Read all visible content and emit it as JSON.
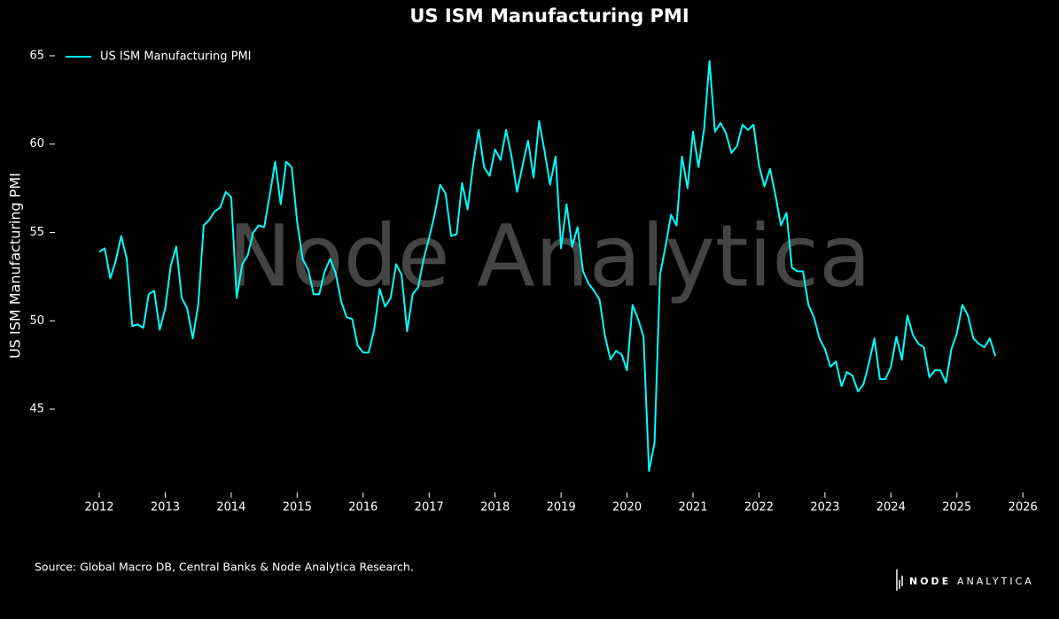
{
  "chart_data": {
    "type": "line",
    "title": "US ISM Manufacturing PMI",
    "ylabel": "US ISM Manufacturing PMI",
    "watermark": "Node Analytica",
    "source": "Source: Global Macro DB, Central Banks & Node Analytica Research.",
    "logo": [
      "NODE",
      "ANALYTICA"
    ],
    "legend": "upper left",
    "grid": false,
    "xlim": [
      2011.3,
      2026.4
    ],
    "ylim": [
      40.3,
      65.7
    ],
    "xticks": [
      2012,
      2013,
      2014,
      2015,
      2016,
      2017,
      2018,
      2019,
      2020,
      2021,
      2022,
      2023,
      2024,
      2025,
      2026
    ],
    "yticks": [
      45,
      50,
      55,
      60,
      65
    ],
    "x": [
      2012,
      2012.083,
      2012.167,
      2012.25,
      2012.333,
      2012.417,
      2012.5,
      2012.583,
      2012.667,
      2012.75,
      2012.833,
      2012.917,
      2013,
      2013.083,
      2013.167,
      2013.25,
      2013.333,
      2013.417,
      2013.5,
      2013.583,
      2013.667,
      2013.75,
      2013.833,
      2013.917,
      2014,
      2014.083,
      2014.167,
      2014.25,
      2014.333,
      2014.417,
      2014.5,
      2014.583,
      2014.667,
      2014.75,
      2014.833,
      2014.917,
      2015,
      2015.083,
      2015.167,
      2015.25,
      2015.333,
      2015.417,
      2015.5,
      2015.583,
      2015.667,
      2015.75,
      2015.833,
      2015.917,
      2016,
      2016.083,
      2016.167,
      2016.25,
      2016.333,
      2016.417,
      2016.5,
      2016.583,
      2016.667,
      2016.75,
      2016.833,
      2016.917,
      2017,
      2017.083,
      2017.167,
      2017.25,
      2017.333,
      2017.417,
      2017.5,
      2017.583,
      2017.667,
      2017.75,
      2017.833,
      2017.917,
      2018,
      2018.083,
      2018.167,
      2018.25,
      2018.333,
      2018.417,
      2018.5,
      2018.583,
      2018.667,
      2018.75,
      2018.833,
      2018.917,
      2019,
      2019.083,
      2019.167,
      2019.25,
      2019.333,
      2019.417,
      2019.5,
      2019.583,
      2019.667,
      2019.75,
      2019.833,
      2019.917,
      2020,
      2020.083,
      2020.167,
      2020.25,
      2020.333,
      2020.417,
      2020.5,
      2020.583,
      2020.667,
      2020.75,
      2020.833,
      2020.917,
      2021,
      2021.083,
      2021.167,
      2021.25,
      2021.333,
      2021.417,
      2021.5,
      2021.583,
      2021.667,
      2021.75,
      2021.833,
      2021.917,
      2022,
      2022.083,
      2022.167,
      2022.25,
      2022.333,
      2022.417,
      2022.5,
      2022.583,
      2022.667,
      2022.75,
      2022.833,
      2022.917,
      2023,
      2023.083,
      2023.167,
      2023.25,
      2023.333,
      2023.417,
      2023.5,
      2023.583,
      2023.667,
      2023.75,
      2023.833,
      2023.917,
      2024,
      2024.083,
      2024.167,
      2024.25,
      2024.333,
      2024.417,
      2024.5,
      2024.583,
      2024.667,
      2024.75,
      2024.833,
      2024.917,
      2025,
      2025.083,
      2025.167,
      2025.25,
      2025.333,
      2025.417,
      2025.5,
      2025.583
    ],
    "series": [
      {
        "name": "US ISM Manufacturing PMI",
        "color": "#00ffff",
        "values": [
          53.9,
          54.1,
          52.4,
          53.4,
          54.8,
          53.5,
          49.7,
          49.8,
          49.6,
          51.5,
          51.7,
          49.5,
          50.7,
          53.1,
          54.2,
          51.3,
          50.7,
          49.0,
          50.9,
          55.4,
          55.7,
          56.2,
          56.4,
          57.3,
          57.0,
          51.3,
          53.2,
          53.7,
          55.0,
          55.4,
          55.3,
          57.1,
          59.0,
          56.6,
          59.0,
          58.7,
          55.6,
          53.5,
          52.9,
          51.5,
          51.5,
          52.8,
          53.5,
          52.7,
          51.1,
          50.2,
          50.1,
          48.6,
          48.2,
          48.2,
          49.5,
          51.8,
          50.8,
          51.3,
          53.2,
          52.6,
          49.4,
          51.5,
          51.9,
          53.5,
          54.7,
          56.0,
          57.7,
          57.2,
          54.8,
          54.9,
          57.8,
          56.3,
          58.8,
          60.8,
          58.7,
          58.2,
          59.7,
          59.1,
          60.8,
          59.3,
          57.3,
          58.8,
          60.2,
          58.1,
          61.3,
          59.6,
          57.7,
          59.3,
          54.1,
          56.6,
          54.2,
          55.3,
          52.8,
          52.1,
          51.7,
          51.2,
          49.1,
          47.8,
          48.3,
          48.1,
          47.2,
          50.9,
          50.1,
          49.1,
          41.5,
          43.1,
          52.6,
          54.2,
          56.0,
          55.4,
          59.3,
          57.5,
          60.7,
          58.7,
          60.8,
          64.7,
          60.7,
          61.2,
          60.6,
          59.5,
          59.9,
          61.1,
          60.8,
          61.1,
          58.8,
          57.6,
          58.6,
          57.1,
          55.4,
          56.1,
          53.0,
          52.8,
          52.8,
          50.9,
          50.2,
          49.0,
          48.4,
          47.4,
          47.7,
          46.3,
          47.1,
          46.9,
          46.0,
          46.4,
          47.6,
          49.0,
          46.7,
          46.7,
          47.4,
          49.1,
          47.8,
          50.3,
          49.2,
          48.7,
          48.5,
          46.8,
          47.2,
          47.2,
          46.5,
          48.4,
          49.3,
          50.9,
          50.3,
          49.0,
          48.7,
          48.5,
          49.0,
          48.0
        ]
      }
    ]
  }
}
